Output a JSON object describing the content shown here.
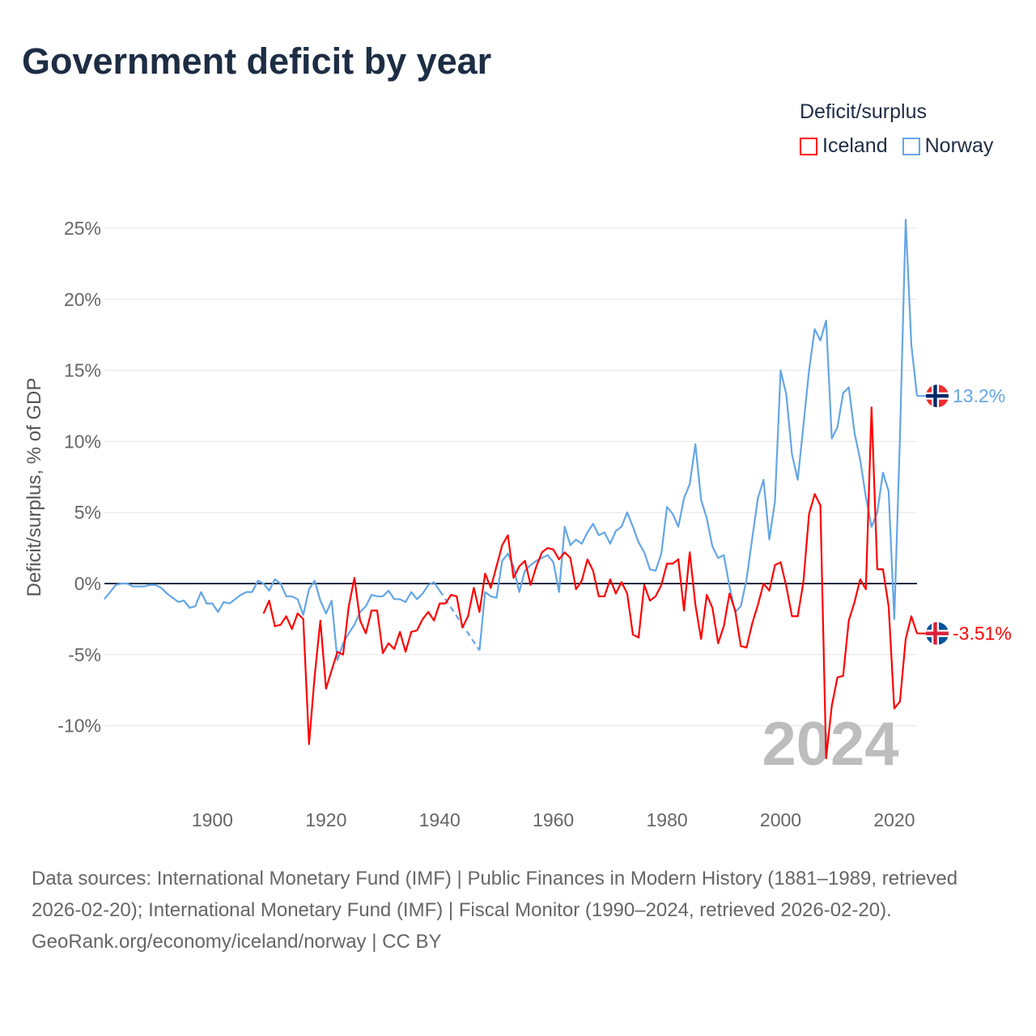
{
  "title": "Government deficit by year",
  "legend": {
    "title": "Deficit/surplus",
    "items": [
      {
        "name": "Iceland",
        "color": "#ff0000"
      },
      {
        "name": "Norway",
        "color": "#64a6e6"
      }
    ]
  },
  "year_watermark": "2024",
  "footer": {
    "sources": "Data sources: International Monetary Fund (IMF) | Public Finances in Modern History (1881–1989, retrieved 2026-02-20); International Monetary Fund (IMF) | Fiscal Monitor (1990–2024, retrieved 2026-02-20).",
    "credit": "GeoRank.org/economy/iceland/norway | CC BY"
  },
  "chart_data": {
    "type": "line",
    "title": "Government deficit by year",
    "ylabel": "Deficit/surplus, % of GDP",
    "xlabel": "",
    "xlim": [
      1881,
      2024
    ],
    "ylim": [
      -13.5,
      26
    ],
    "yticks": [
      25,
      20,
      15,
      10,
      5,
      0,
      -5,
      -10
    ],
    "ytick_labels": [
      "25%",
      "20%",
      "15%",
      "10%",
      "5%",
      "0%",
      "-5%",
      "-10%"
    ],
    "xticks": [
      1900,
      1920,
      1940,
      1960,
      1980,
      2000,
      2020
    ],
    "xtick_labels": [
      "1900",
      "1920",
      "1940",
      "1960",
      "1980",
      "2000",
      "2020"
    ],
    "grid": true,
    "legend_position": "top-right",
    "series": [
      {
        "name": "Norway",
        "color": "#64a6e6",
        "start_year": 1881,
        "end_label": "13.2%",
        "values": [
          -1.1,
          -0.6,
          -0.1,
          0,
          0,
          -0.2,
          -0.2,
          -0.2,
          -0.1,
          -0.1,
          -0.3,
          -0.7,
          -1.0,
          -1.3,
          -1.2,
          -1.7,
          -1.6,
          -0.6,
          -1.4,
          -1.4,
          -2.0,
          -1.3,
          -1.4,
          -1.1,
          -0.8,
          -0.6,
          -0.6,
          0.2,
          0,
          -0.5,
          0.3,
          0,
          -0.9,
          -0.9,
          -1.1,
          -2.2,
          -0.4,
          0.2,
          -1.2,
          -2.1,
          -1.2,
          -5.4,
          -4.2,
          -3.5,
          -2.9,
          -2.0,
          -1.6,
          -0.8,
          -0.9,
          -0.9,
          -0.5,
          -1.1,
          -1.1,
          -1.3,
          -0.6,
          -1.1,
          -0.7,
          -0.1,
          0.1,
          -0.5,
          null,
          null,
          null,
          null,
          null,
          null,
          -4.7,
          -0.6,
          -0.9,
          -1.0,
          1.6,
          2.1,
          1.2,
          -0.6,
          0.9,
          1.3,
          1.6,
          1.8,
          2.0,
          1.5,
          -0.6,
          4.0,
          2.7,
          3.1,
          2.8,
          3.6,
          4.2,
          3.4,
          3.6,
          2.8,
          3.7,
          4.0,
          5.0,
          4.0,
          2.9,
          2.2,
          1.0,
          0.9,
          2.1,
          5.4,
          4.9,
          4.0,
          6.0,
          7.0,
          9.8,
          5.9,
          4.6,
          2.6,
          1.8,
          2.0,
          -0.2,
          -2.0,
          -1.6,
          0.3,
          3.2,
          6.0,
          7.3,
          3.1,
          5.8,
          15.0,
          13.3,
          9.1,
          7.3,
          11.1,
          15.0,
          17.9,
          17.1,
          18.5,
          10.2,
          11.0,
          13.4,
          13.8,
          10.6,
          8.7,
          6.1,
          4.0,
          5.0,
          7.8,
          6.5,
          -2.5,
          10.3,
          25.6,
          16.8,
          13.2
        ]
      },
      {
        "name": "Iceland",
        "color": "#ff0000",
        "start_year": 1909,
        "end_label": "-3.51%",
        "values": [
          -2.1,
          -1.2,
          -3.0,
          -2.9,
          -2.3,
          -3.2,
          -2.1,
          -2.5,
          -11.3,
          -6.5,
          -2.6,
          -7.4,
          -6.1,
          -4.8,
          -5.0,
          -1.6,
          0.4,
          -2.6,
          -3.5,
          -1.9,
          -1.9,
          -4.9,
          -4.2,
          -4.6,
          -3.4,
          -4.8,
          -3.4,
          -3.3,
          -2.5,
          -2.0,
          -2.6,
          -1.4,
          -1.4,
          -0.8,
          -0.9,
          -3.1,
          -2.3,
          -0.3,
          -2.0,
          0.7,
          -0.3,
          1.2,
          2.7,
          3.4,
          0.4,
          1.2,
          1.6,
          -0.1,
          1.2,
          2.2,
          2.5,
          2.4,
          1.7,
          2.2,
          1.8,
          -0.4,
          0.2,
          1.7,
          0.9,
          -0.9,
          -0.9,
          0.3,
          -0.7,
          0.1,
          -0.7,
          -3.6,
          -3.8,
          -0.1,
          -1.2,
          -0.9,
          -0.1,
          1.4,
          1.4,
          1.7,
          -1.9,
          2.2,
          -1.5,
          -3.9,
          -0.8,
          -1.7,
          -4.2,
          -3.0,
          -0.7,
          -1.9,
          -4.4,
          -4.5,
          -2.8,
          -1.5,
          0.0,
          -0.5,
          1.3,
          1.5,
          -0.2,
          -2.3,
          -2.3,
          0.1,
          4.9,
          6.3,
          5.5,
          -12.3,
          -8.6,
          -6.6,
          -6.5,
          -2.6,
          -1.3,
          0.3,
          -0.4,
          12.4,
          1.0,
          1.0,
          -1.6,
          -8.8,
          -8.3,
          -3.9,
          -2.3,
          -3.51
        ]
      }
    ]
  }
}
